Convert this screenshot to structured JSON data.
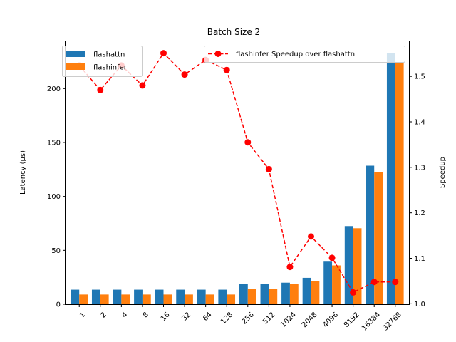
{
  "chart_data": {
    "type": "bar",
    "title": "Batch Size 2",
    "categories": [
      "1",
      "2",
      "4",
      "8",
      "16",
      "32",
      "64",
      "128",
      "256",
      "512",
      "1024",
      "2048",
      "4096",
      "8192",
      "16384",
      "32768"
    ],
    "series": [
      {
        "name": "flashattn",
        "color": "#1f77b4",
        "values": [
          13.5,
          13.5,
          13.5,
          13.5,
          13.5,
          13.5,
          13.5,
          13.5,
          19.0,
          18.5,
          20.0,
          24.5,
          39.5,
          72.5,
          128.5,
          233.0
        ]
      },
      {
        "name": "flashinfer",
        "color": "#ff7f0e",
        "values": [
          9.0,
          9.0,
          9.0,
          9.0,
          9.0,
          9.0,
          9.0,
          9.0,
          14.5,
          14.5,
          18.5,
          21.5,
          36.0,
          70.5,
          122.5,
          224.0
        ]
      }
    ],
    "ylabel": "Latency (μs)",
    "ylim": [
      0,
      243.8
    ],
    "yticks": [
      0,
      50,
      100,
      150,
      200
    ],
    "secondary": {
      "type": "line",
      "name": "flashinfer Speedup over flashattn",
      "color": "#ff0000",
      "style": "dashed",
      "marker": "circle",
      "values": [
        1.524,
        1.47,
        1.524,
        1.48,
        1.551,
        1.504,
        1.536,
        1.514,
        1.355,
        1.296,
        1.081,
        1.148,
        1.101,
        1.025,
        1.048,
        1.048
      ],
      "ylabel": "Speedup",
      "ylim": [
        0.999,
        1.577
      ],
      "yticks": [
        "1.0",
        "1.1",
        "1.2",
        "1.3",
        "1.4",
        "1.5"
      ]
    },
    "legend_bars_position": "top-left",
    "legend_line_position": "top-right",
    "grid": false
  }
}
